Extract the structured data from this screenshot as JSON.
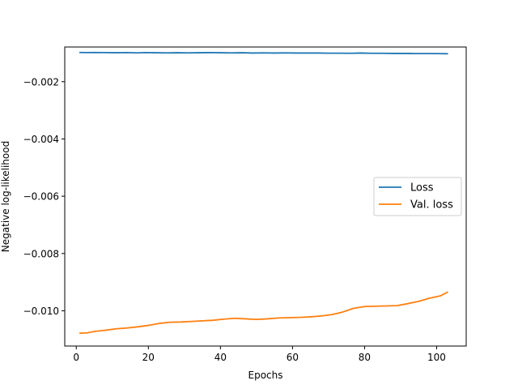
{
  "chart_data": {
    "type": "line",
    "title": "",
    "xlabel": "Epochs",
    "ylabel": "Negative log-likelihood",
    "xlim": [
      -3.2,
      108.2
    ],
    "ylim": [
      -0.01123,
      -0.00079
    ],
    "xticks": [
      0,
      20,
      40,
      60,
      80,
      100
    ],
    "xtick_labels": [
      "0",
      "20",
      "40",
      "60",
      "80",
      "100"
    ],
    "yticks": [
      -0.002,
      -0.004,
      -0.006,
      -0.008,
      -0.01
    ],
    "ytick_labels": [
      "−0.002",
      "−0.004",
      "−0.006",
      "−0.008",
      "−0.010"
    ],
    "grid": false,
    "legend_position": "center-right",
    "series": [
      {
        "name": "Loss",
        "color": "#1f77b4",
        "x": [
          1,
          3,
          5,
          8,
          11,
          14,
          17,
          19,
          22,
          25,
          28,
          31,
          34,
          37,
          40,
          43,
          46,
          49,
          52,
          55,
          58,
          61,
          64,
          67,
          70,
          73,
          76,
          79,
          82,
          85,
          88,
          91,
          94,
          97,
          100,
          103
        ],
        "y": [
          -0.00098,
          -0.000985,
          -0.00098,
          -0.000985,
          -0.00099,
          -0.000985,
          -0.000995,
          -0.000985,
          -0.00099,
          -0.000995,
          -0.00099,
          -0.000995,
          -0.00099,
          -0.000985,
          -0.00099,
          -0.000995,
          -0.00099,
          -0.001,
          -0.000995,
          -0.001,
          -0.000995,
          -0.001,
          -0.001,
          -0.001,
          -0.001005,
          -0.001005,
          -0.00101,
          -0.001,
          -0.00101,
          -0.00101,
          -0.001015,
          -0.001015,
          -0.00102,
          -0.00102,
          -0.00102,
          -0.001025
        ]
      },
      {
        "name": "Val. loss",
        "color": "#ff7f0e",
        "x": [
          1,
          3,
          5,
          8,
          11,
          14,
          17,
          20,
          23,
          26,
          29,
          32,
          35,
          38,
          41,
          44,
          47,
          50,
          53,
          56,
          59,
          62,
          65,
          68,
          71,
          74,
          77,
          80,
          83,
          86,
          89,
          92,
          95,
          98,
          101,
          103
        ],
        "y": [
          -0.01078,
          -0.01077,
          -0.01072,
          -0.01068,
          -0.01063,
          -0.0106,
          -0.01056,
          -0.01051,
          -0.01044,
          -0.0104,
          -0.01039,
          -0.01037,
          -0.01035,
          -0.01033,
          -0.01029,
          -0.01026,
          -0.01028,
          -0.0103,
          -0.01028,
          -0.01025,
          -0.01024,
          -0.01023,
          -0.01021,
          -0.01018,
          -0.01013,
          -0.01004,
          -0.00991,
          -0.00985,
          -0.00984,
          -0.00983,
          -0.00982,
          -0.00975,
          -0.00967,
          -0.00956,
          -0.00948,
          -0.00935
        ]
      }
    ]
  }
}
